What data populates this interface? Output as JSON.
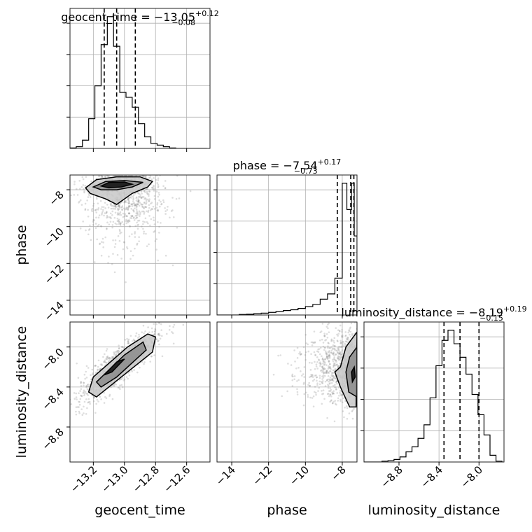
{
  "chart_data": {
    "type": "corner",
    "grid": true,
    "parameters": [
      {
        "name": "geocent_time",
        "label": "geocent_time",
        "title": {
          "prefix": "geocent_time = ",
          "median": "−13.05",
          "plus": "+0.12",
          "minus": "−0.08"
        },
        "range": [
          -13.35,
          -12.45
        ],
        "ticks": [
          -13.2,
          -13.0,
          -12.8,
          -12.6
        ],
        "tick_labels": [
          "−13.2",
          "−13.0",
          "−12.8",
          "−12.6"
        ],
        "quantiles": [
          -13.13,
          -13.05,
          -12.93
        ],
        "hist": {
          "edges": [
            -13.35,
            -13.31,
            -13.27,
            -13.23,
            -13.19,
            -13.15,
            -13.11,
            -13.07,
            -13.03,
            -12.99,
            -12.95,
            -12.91,
            -12.87,
            -12.83,
            -12.79,
            -12.75,
            -12.71,
            -12.67,
            -12.63,
            -12.59,
            -12.55,
            -12.51,
            -12.47
          ],
          "counts": [
            0.3,
            1,
            5,
            18,
            38,
            63,
            80,
            62,
            34,
            31,
            25,
            15,
            7,
            3,
            2,
            1,
            0.3,
            0,
            0,
            0,
            0,
            0
          ]
        }
      },
      {
        "name": "phase",
        "label": "phase",
        "title": {
          "prefix": "phase = ",
          "median": "−7.54",
          "plus": "+0.17",
          "minus": "−0.73"
        },
        "range": [
          -14.8,
          -7.2
        ],
        "ticks": [
          -14,
          -12,
          -10,
          -8
        ],
        "tick_labels": [
          "−14",
          "−12",
          "−10",
          "−8"
        ],
        "quantiles": [
          -8.27,
          -7.54,
          -7.37
        ],
        "hist": {
          "edges": [
            -14.8,
            -14.4,
            -14.0,
            -13.6,
            -13.2,
            -12.8,
            -12.4,
            -12.0,
            -11.6,
            -11.2,
            -10.8,
            -10.4,
            -10.0,
            -9.6,
            -9.2,
            -8.8,
            -8.4,
            -8.0,
            -7.75,
            -7.5,
            -7.35,
            -7.2
          ],
          "counts": [
            0,
            0,
            0,
            0.2,
            0.3,
            0.5,
            0.7,
            1,
            1.3,
            1.7,
            2,
            2.5,
            3.2,
            4,
            6,
            8,
            14,
            50,
            40,
            50,
            30
          ]
        }
      },
      {
        "name": "luminosity_distance",
        "label": "luminosity_distance",
        "title": {
          "prefix": "luminosity_distance = ",
          "median": "−8.19",
          "plus": "+0.19",
          "minus": "−0.15"
        },
        "range": [
          -9.15,
          -7.75
        ],
        "ticks": [
          -8.8,
          -8.4,
          -8.0
        ],
        "tick_labels": [
          "−8.8",
          "−8.4",
          "−8.0"
        ],
        "quantiles": [
          -8.35,
          -8.19,
          -8.0
        ],
        "hist": {
          "edges": [
            -9.15,
            -9.09,
            -9.03,
            -8.97,
            -8.91,
            -8.85,
            -8.79,
            -8.73,
            -8.67,
            -8.61,
            -8.55,
            -8.49,
            -8.43,
            -8.37,
            -8.31,
            -8.25,
            -8.19,
            -8.13,
            -8.07,
            -8.01,
            -7.95,
            -7.89,
            -7.83,
            -7.77
          ],
          "counts": [
            0,
            0,
            0,
            0.5,
            0.8,
            1.5,
            3,
            6,
            9,
            14,
            22,
            38,
            57,
            72,
            78,
            70,
            62,
            52,
            40,
            28,
            16,
            4,
            0.5
          ]
        }
      }
    ],
    "pairs": [
      {
        "x": "geocent_time",
        "y": "phase",
        "scatter_center": [
          -13.0,
          -9.2
        ],
        "contours": [
          [
            [
              -13.25,
              -7.9
            ],
            [
              -13.18,
              -7.45
            ],
            [
              -13.05,
              -7.3
            ],
            [
              -12.9,
              -7.3
            ],
            [
              -12.82,
              -7.55
            ],
            [
              -12.85,
              -7.85
            ],
            [
              -12.95,
              -8.2
            ],
            [
              -13.05,
              -8.8
            ],
            [
              -13.12,
              -8.5
            ],
            [
              -13.22,
              -8.2
            ]
          ],
          [
            [
              -13.2,
              -7.85
            ],
            [
              -13.12,
              -7.55
            ],
            [
              -13.0,
              -7.5
            ],
            [
              -12.88,
              -7.6
            ],
            [
              -12.95,
              -7.85
            ],
            [
              -13.05,
              -8.0
            ],
            [
              -13.15,
              -8.0
            ]
          ],
          [
            [
              -13.15,
              -7.8
            ],
            [
              -13.1,
              -7.6
            ],
            [
              -13.0,
              -7.58
            ],
            [
              -12.95,
              -7.7
            ],
            [
              -13.02,
              -7.85
            ],
            [
              -13.1,
              -7.9
            ]
          ]
        ]
      },
      {
        "x": "geocent_time",
        "y": "luminosity_distance",
        "scatter_center": [
          -13.05,
          -8.2
        ],
        "contours": [
          [
            [
              -13.23,
              -8.45
            ],
            [
              -13.2,
              -8.3
            ],
            [
              -12.98,
              -8.0
            ],
            [
              -12.85,
              -7.87
            ],
            [
              -12.8,
              -7.9
            ],
            [
              -12.82,
              -8.05
            ],
            [
              -13.02,
              -8.3
            ],
            [
              -13.18,
              -8.5
            ]
          ],
          [
            [
              -13.18,
              -8.35
            ],
            [
              -13.0,
              -8.08
            ],
            [
              -12.88,
              -7.95
            ],
            [
              -12.86,
              -8.03
            ],
            [
              -13.05,
              -8.3
            ],
            [
              -13.15,
              -8.4
            ]
          ],
          [
            [
              -13.13,
              -8.28
            ],
            [
              -13.05,
              -8.15
            ],
            [
              -13.0,
              -8.12
            ],
            [
              -13.08,
              -8.25
            ]
          ]
        ]
      },
      {
        "x": "phase",
        "y": "luminosity_distance",
        "scatter_center": [
          -8.6,
          -8.2
        ],
        "contours": [
          [
            [
              -7.2,
              -7.85
            ],
            [
              -7.8,
              -8.0
            ],
            [
              -8.1,
              -8.2
            ],
            [
              -8.4,
              -8.25
            ],
            [
              -8.1,
              -8.4
            ],
            [
              -7.6,
              -8.6
            ],
            [
              -7.25,
              -8.6
            ]
          ],
          [
            [
              -7.2,
              -8.0
            ],
            [
              -7.6,
              -8.1
            ],
            [
              -7.8,
              -8.25
            ],
            [
              -7.65,
              -8.45
            ],
            [
              -7.2,
              -8.5
            ]
          ],
          [
            [
              -7.35,
              -8.2
            ],
            [
              -7.5,
              -8.25
            ],
            [
              -7.45,
              -8.35
            ],
            [
              -7.3,
              -8.3
            ]
          ]
        ]
      }
    ]
  }
}
